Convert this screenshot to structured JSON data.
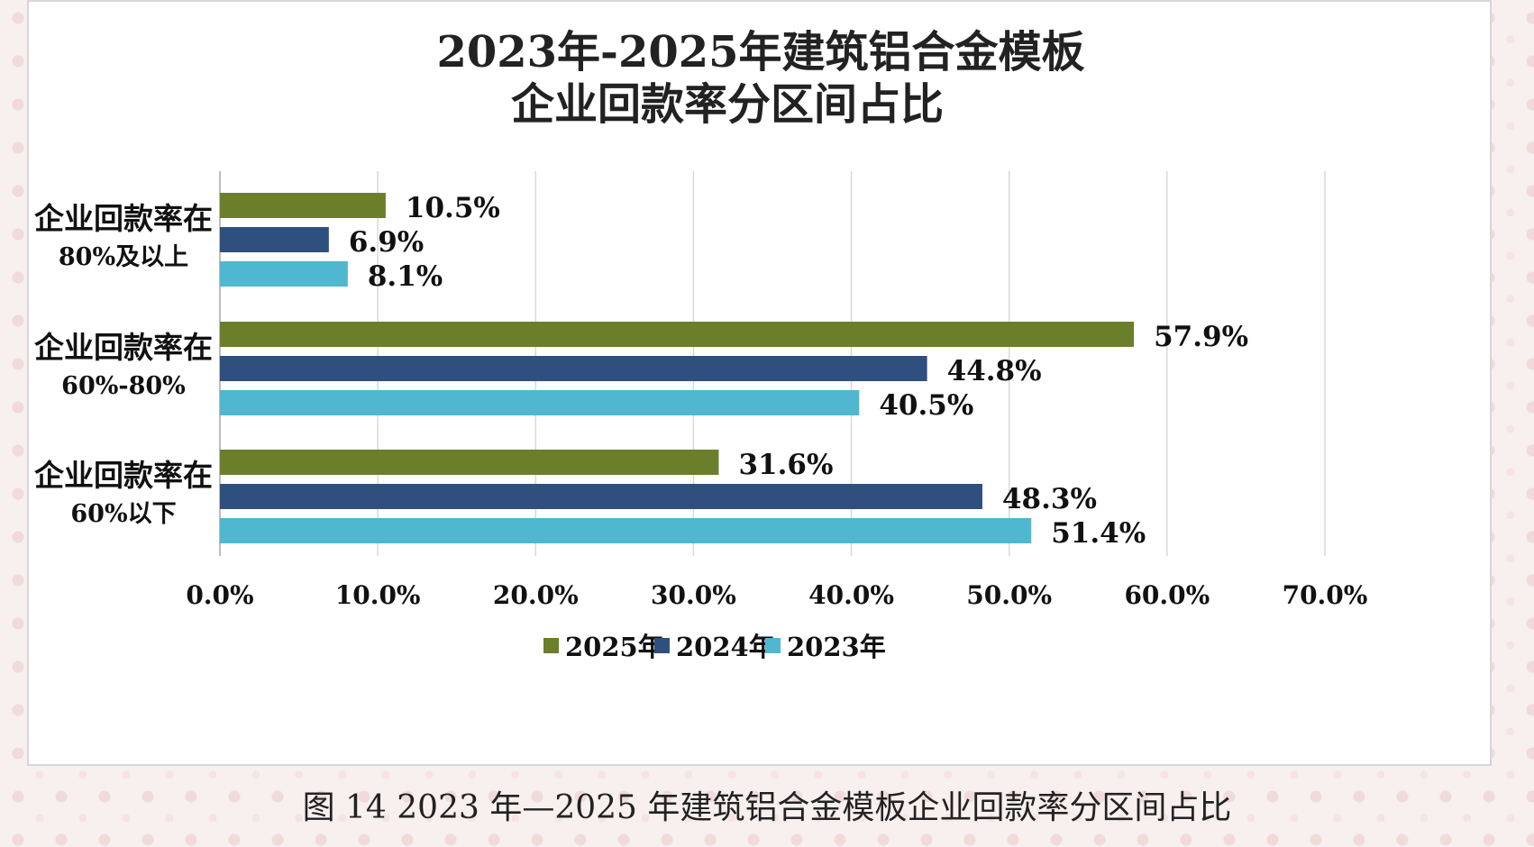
{
  "caption": "图 14 2023 年—2025 年建筑铝合金模板企业回款率分区间占比",
  "chart_data": {
    "type": "bar",
    "orientation": "horizontal",
    "title": [
      "2023年-2025年建筑铝合金模板",
      "企业回款率分区间占比"
    ],
    "categories": [
      [
        "企业回款率在",
        "80%及以上"
      ],
      [
        "企业回款率在",
        "60%-80%"
      ],
      [
        "企业回款率在",
        "60%以下"
      ]
    ],
    "series": [
      {
        "name": "2025年",
        "color": "#6b7f2a",
        "values": [
          10.5,
          57.9,
          31.6
        ],
        "labels": [
          "10.5%",
          "57.9%",
          "31.6%"
        ]
      },
      {
        "name": "2024年",
        "color": "#2f4f7f",
        "values": [
          6.9,
          44.8,
          48.3
        ],
        "labels": [
          "6.9%",
          "44.8%",
          "48.3%"
        ]
      },
      {
        "name": "2023年",
        "color": "#4fb7cf",
        "values": [
          8.1,
          40.5,
          51.4
        ],
        "labels": [
          "8.1%",
          "40.5%",
          "51.4%"
        ]
      }
    ],
    "x_ticks": [
      0,
      10,
      20,
      30,
      40,
      50,
      60,
      70
    ],
    "x_tick_labels": [
      "0.0%",
      "10.0%",
      "20.0%",
      "30.0%",
      "40.0%",
      "50.0%",
      "60.0%",
      "70.0%"
    ],
    "xlim": [
      0,
      70
    ],
    "grid": true,
    "legend_position": "bottom"
  }
}
